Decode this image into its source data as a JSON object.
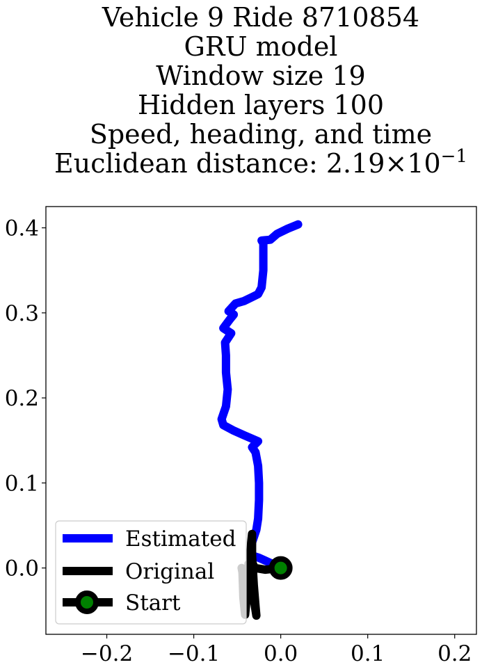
{
  "chart_data": {
    "type": "line",
    "title_lines": [
      "Vehicle 9 Ride 8710854",
      "GRU model",
      "Window size 19",
      "Hidden layers 100",
      "Speed, heading, and time"
    ],
    "distance_label": "Euclidean distance: ",
    "distance_value": "2.19",
    "distance_times": "×",
    "distance_base": "10",
    "distance_exponent": "−1",
    "xlim": [
      -0.27,
      0.225
    ],
    "ylim": [
      -0.078,
      0.425
    ],
    "xticks": [
      {
        "value": -0.2,
        "label": "−0.2"
      },
      {
        "value": -0.1,
        "label": "−0.1"
      },
      {
        "value": 0.0,
        "label": "0.0"
      },
      {
        "value": 0.1,
        "label": "0.1"
      },
      {
        "value": 0.2,
        "label": "0.2"
      }
    ],
    "yticks": [
      {
        "value": 0.0,
        "label": "0.0"
      },
      {
        "value": 0.1,
        "label": "0.1"
      },
      {
        "value": 0.2,
        "label": "0.2"
      },
      {
        "value": 0.3,
        "label": "0.3"
      },
      {
        "value": 0.4,
        "label": "0.4"
      }
    ],
    "legend_position": "lower-left",
    "series": [
      {
        "name": "Estimated",
        "color": "#0000ff",
        "points": [
          [
            0.0,
            0.0
          ],
          [
            -0.012,
            0.006
          ],
          [
            -0.025,
            0.012
          ],
          [
            -0.034,
            0.015
          ],
          [
            -0.033,
            0.03
          ],
          [
            -0.028,
            0.045
          ],
          [
            -0.026,
            0.058
          ],
          [
            -0.025,
            0.08
          ],
          [
            -0.025,
            0.1
          ],
          [
            -0.026,
            0.12
          ],
          [
            -0.029,
            0.136
          ],
          [
            -0.033,
            0.142
          ],
          [
            -0.026,
            0.149
          ],
          [
            -0.042,
            0.156
          ],
          [
            -0.055,
            0.162
          ],
          [
            -0.066,
            0.168
          ],
          [
            -0.068,
            0.175
          ],
          [
            -0.063,
            0.19
          ],
          [
            -0.061,
            0.21
          ],
          [
            -0.063,
            0.23
          ],
          [
            -0.063,
            0.25
          ],
          [
            -0.064,
            0.265
          ],
          [
            -0.057,
            0.276
          ],
          [
            -0.066,
            0.282
          ],
          [
            -0.058,
            0.293
          ],
          [
            -0.054,
            0.298
          ],
          [
            -0.06,
            0.302
          ],
          [
            -0.052,
            0.311
          ],
          [
            -0.042,
            0.314
          ],
          [
            -0.032,
            0.319
          ],
          [
            -0.026,
            0.322
          ],
          [
            -0.022,
            0.33
          ],
          [
            -0.02,
            0.35
          ],
          [
            -0.02,
            0.37
          ],
          [
            -0.02,
            0.382
          ],
          [
            -0.022,
            0.385
          ],
          [
            -0.012,
            0.386
          ],
          [
            -0.004,
            0.393
          ],
          [
            0.008,
            0.399
          ],
          [
            0.02,
            0.404
          ]
        ]
      },
      {
        "name": "Original",
        "color": "#000000",
        "points": [
          [
            0.0,
            0.0
          ],
          [
            -0.018,
            -0.002
          ],
          [
            -0.03,
            0.0
          ],
          [
            -0.035,
            0.012
          ],
          [
            -0.034,
            0.03
          ],
          [
            -0.033,
            0.04
          ],
          [
            -0.033,
            0.015
          ],
          [
            -0.031,
            -0.02
          ],
          [
            -0.029,
            -0.045
          ],
          [
            -0.028,
            -0.056
          ],
          [
            -0.032,
            -0.03
          ],
          [
            -0.035,
            -0.01
          ],
          [
            -0.037,
            0.005
          ],
          [
            -0.038,
            -0.02
          ],
          [
            -0.04,
            -0.045
          ],
          [
            -0.041,
            -0.055
          ],
          [
            -0.043,
            -0.035
          ],
          [
            -0.044,
            -0.005
          ],
          [
            -0.045,
            0.0
          ]
        ]
      }
    ],
    "start": {
      "name": "Start",
      "x": 0.0,
      "y": 0.0,
      "marker_fill": "#008000",
      "marker_edge": "#000000"
    }
  }
}
